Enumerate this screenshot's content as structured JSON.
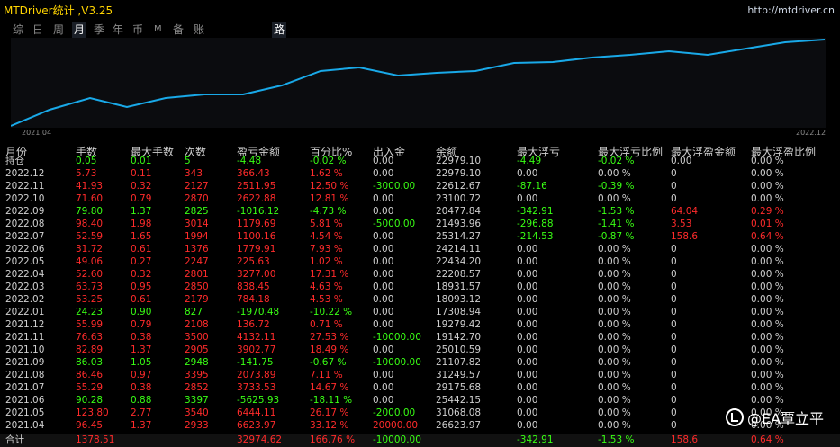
{
  "app": {
    "title": "MTDriver统计 ,V3.25",
    "url": "http://mtdriver.cn"
  },
  "nav": {
    "items": [
      "综",
      "日",
      "周",
      "月",
      "季",
      "年",
      "币",
      "M",
      "备",
      "账户",
      "路径"
    ],
    "selected": "月"
  },
  "chart_data": {
    "type": "line",
    "x_start_label": "2021.04",
    "x_end_label": "2022.12",
    "color": "#19a9e8"
  },
  "headers": [
    "月份",
    "手数",
    "最大手数",
    "次数",
    "盈亏金额",
    "百分比%",
    "出入金",
    "余额",
    "最大浮亏",
    "最大浮亏比例",
    "最大浮盈金额",
    "最大浮盈比例"
  ],
  "rows": [
    {
      "c": [
        "持仓",
        "0.05",
        "0.01",
        "5",
        "-4.48",
        "-0.02 %",
        "0.00",
        "22979.10",
        "-4.49",
        "-0.02 %",
        "0.00",
        "0.00 %"
      ],
      "k": [
        "w",
        "g",
        "g",
        "g",
        "g",
        "g",
        "w",
        "w",
        "g",
        "g",
        "w",
        "w"
      ]
    },
    {
      "c": [
        "2022.12",
        "5.73",
        "0.11",
        "343",
        "366.43",
        "1.62 %",
        "0.00",
        "22979.10",
        "0.00",
        "0.00 %",
        "0",
        "0.00 %"
      ],
      "k": [
        "w",
        "r",
        "r",
        "r",
        "r",
        "r",
        "w",
        "w",
        "w",
        "w",
        "w",
        "w"
      ]
    },
    {
      "c": [
        "2022.11",
        "41.93",
        "0.32",
        "2127",
        "2511.95",
        "12.50 %",
        "-3000.00",
        "22612.67",
        "-87.16",
        "-0.39 %",
        "0",
        "0.00 %"
      ],
      "k": [
        "w",
        "r",
        "r",
        "r",
        "r",
        "r",
        "g",
        "w",
        "g",
        "g",
        "w",
        "w"
      ]
    },
    {
      "c": [
        "2022.10",
        "71.60",
        "0.79",
        "2870",
        "2622.88",
        "12.81 %",
        "0.00",
        "23100.72",
        "0.00",
        "0.00 %",
        "0",
        "0.00 %"
      ],
      "k": [
        "w",
        "r",
        "r",
        "r",
        "r",
        "r",
        "w",
        "w",
        "w",
        "w",
        "w",
        "w"
      ]
    },
    {
      "c": [
        "2022.09",
        "79.80",
        "1.37",
        "2825",
        "-1016.12",
        "-4.73 %",
        "0.00",
        "20477.84",
        "-342.91",
        "-1.53 %",
        "64.04",
        "0.29 %"
      ],
      "k": [
        "w",
        "g",
        "g",
        "g",
        "g",
        "g",
        "w",
        "w",
        "g",
        "g",
        "r",
        "r"
      ]
    },
    {
      "c": [
        "2022.08",
        "98.40",
        "1.98",
        "3014",
        "1179.69",
        "5.81 %",
        "-5000.00",
        "21493.96",
        "-296.88",
        "-1.41 %",
        "3.53",
        "0.01 %"
      ],
      "k": [
        "w",
        "r",
        "r",
        "r",
        "r",
        "r",
        "g",
        "w",
        "g",
        "g",
        "r",
        "r"
      ]
    },
    {
      "c": [
        "2022.07",
        "52.59",
        "1.65",
        "1994",
        "1100.16",
        "4.54 %",
        "0.00",
        "25314.27",
        "-214.53",
        "-0.87 %",
        "158.6",
        "0.64 %"
      ],
      "k": [
        "w",
        "r",
        "r",
        "r",
        "r",
        "r",
        "w",
        "w",
        "g",
        "g",
        "r",
        "r"
      ]
    },
    {
      "c": [
        "2022.06",
        "31.72",
        "0.61",
        "1376",
        "1779.91",
        "7.93 %",
        "0.00",
        "24214.11",
        "0.00",
        "0.00 %",
        "0",
        "0.00 %"
      ],
      "k": [
        "w",
        "r",
        "r",
        "r",
        "r",
        "r",
        "w",
        "w",
        "w",
        "w",
        "w",
        "w"
      ]
    },
    {
      "c": [
        "2022.05",
        "49.06",
        "0.27",
        "2247",
        "225.63",
        "1.02 %",
        "0.00",
        "22434.20",
        "0.00",
        "0.00 %",
        "0",
        "0.00 %"
      ],
      "k": [
        "w",
        "r",
        "r",
        "r",
        "r",
        "r",
        "w",
        "w",
        "w",
        "w",
        "w",
        "w"
      ]
    },
    {
      "c": [
        "2022.04",
        "52.60",
        "0.32",
        "2801",
        "3277.00",
        "17.31 %",
        "0.00",
        "22208.57",
        "0.00",
        "0.00 %",
        "0",
        "0.00 %"
      ],
      "k": [
        "w",
        "r",
        "r",
        "r",
        "r",
        "r",
        "w",
        "w",
        "w",
        "w",
        "w",
        "w"
      ]
    },
    {
      "c": [
        "2022.03",
        "63.73",
        "0.95",
        "2850",
        "838.45",
        "4.63 %",
        "0.00",
        "18931.57",
        "0.00",
        "0.00 %",
        "0",
        "0.00 %"
      ],
      "k": [
        "w",
        "r",
        "r",
        "r",
        "r",
        "r",
        "w",
        "w",
        "w",
        "w",
        "w",
        "w"
      ]
    },
    {
      "c": [
        "2022.02",
        "53.25",
        "0.61",
        "2179",
        "784.18",
        "4.53 %",
        "0.00",
        "18093.12",
        "0.00",
        "0.00 %",
        "0",
        "0.00 %"
      ],
      "k": [
        "w",
        "r",
        "r",
        "r",
        "r",
        "r",
        "w",
        "w",
        "w",
        "w",
        "w",
        "w"
      ]
    },
    {
      "c": [
        "2022.01",
        "24.23",
        "0.90",
        "827",
        "-1970.48",
        "-10.22 %",
        "0.00",
        "17308.94",
        "0.00",
        "0.00 %",
        "0",
        "0.00 %"
      ],
      "k": [
        "w",
        "g",
        "g",
        "g",
        "g",
        "g",
        "w",
        "w",
        "w",
        "w",
        "w",
        "w"
      ]
    },
    {
      "c": [
        "2021.12",
        "55.99",
        "0.79",
        "2108",
        "136.72",
        "0.71 %",
        "0.00",
        "19279.42",
        "0.00",
        "0.00 %",
        "0",
        "0.00 %"
      ],
      "k": [
        "w",
        "r",
        "r",
        "r",
        "r",
        "r",
        "w",
        "w",
        "w",
        "w",
        "w",
        "w"
      ]
    },
    {
      "c": [
        "2021.11",
        "76.63",
        "0.38",
        "3500",
        "4132.11",
        "27.53 %",
        "-10000.00",
        "19142.70",
        "0.00",
        "0.00 %",
        "0",
        "0.00 %"
      ],
      "k": [
        "w",
        "r",
        "r",
        "r",
        "r",
        "r",
        "g",
        "w",
        "w",
        "w",
        "w",
        "w"
      ]
    },
    {
      "c": [
        "2021.10",
        "82.89",
        "1.37",
        "2905",
        "3902.77",
        "18.49 %",
        "0.00",
        "25010.59",
        "0.00",
        "0.00 %",
        "0",
        "0.00 %"
      ],
      "k": [
        "w",
        "r",
        "r",
        "r",
        "r",
        "r",
        "w",
        "w",
        "w",
        "w",
        "w",
        "w"
      ]
    },
    {
      "c": [
        "2021.09",
        "86.03",
        "1.05",
        "2948",
        "-141.75",
        "-0.67 %",
        "-10000.00",
        "21107.82",
        "0.00",
        "0.00 %",
        "0",
        "0.00 %"
      ],
      "k": [
        "w",
        "g",
        "g",
        "g",
        "g",
        "g",
        "g",
        "w",
        "w",
        "w",
        "w",
        "w"
      ]
    },
    {
      "c": [
        "2021.08",
        "86.46",
        "0.97",
        "3395",
        "2073.89",
        "7.11 %",
        "0.00",
        "31249.57",
        "0.00",
        "0.00 %",
        "0",
        "0.00 %"
      ],
      "k": [
        "w",
        "r",
        "r",
        "r",
        "r",
        "r",
        "w",
        "w",
        "w",
        "w",
        "w",
        "w"
      ]
    },
    {
      "c": [
        "2021.07",
        "55.29",
        "0.38",
        "2852",
        "3733.53",
        "14.67 %",
        "0.00",
        "29175.68",
        "0.00",
        "0.00 %",
        "0",
        "0.00 %"
      ],
      "k": [
        "w",
        "r",
        "r",
        "r",
        "r",
        "r",
        "w",
        "w",
        "w",
        "w",
        "w",
        "w"
      ]
    },
    {
      "c": [
        "2021.06",
        "90.28",
        "0.88",
        "3397",
        "-5625.93",
        "-18.11 %",
        "0.00",
        "25442.15",
        "0.00",
        "0.00 %",
        "0",
        "0.00 %"
      ],
      "k": [
        "w",
        "g",
        "g",
        "g",
        "g",
        "g",
        "w",
        "w",
        "w",
        "w",
        "w",
        "w"
      ]
    },
    {
      "c": [
        "2021.05",
        "123.80",
        "2.77",
        "3540",
        "6444.11",
        "26.17 %",
        "-2000.00",
        "31068.08",
        "0.00",
        "0.00 %",
        "0",
        "0.00 %"
      ],
      "k": [
        "w",
        "r",
        "r",
        "r",
        "r",
        "r",
        "g",
        "w",
        "w",
        "w",
        "w",
        "w"
      ]
    },
    {
      "c": [
        "2021.04",
        "96.45",
        "1.37",
        "2933",
        "6623.97",
        "33.12 %",
        "20000.00",
        "26623.97",
        "0.00",
        "0.00 %",
        "0",
        "0.00 %"
      ],
      "k": [
        "w",
        "r",
        "r",
        "r",
        "r",
        "r",
        "r",
        "w",
        "w",
        "w",
        "w",
        "w"
      ]
    }
  ],
  "total": {
    "c": [
      "合计",
      "1378.51",
      "",
      "",
      "32974.62",
      "166.76 %",
      "-10000.00",
      "",
      "-342.91",
      "-1.53 %",
      "158.6",
      "0.64 %"
    ],
    "k": [
      "w",
      "r",
      "w",
      "w",
      "r",
      "r",
      "g",
      "w",
      "g",
      "g",
      "r",
      "r"
    ]
  },
  "watermark": "@EA覃立平"
}
